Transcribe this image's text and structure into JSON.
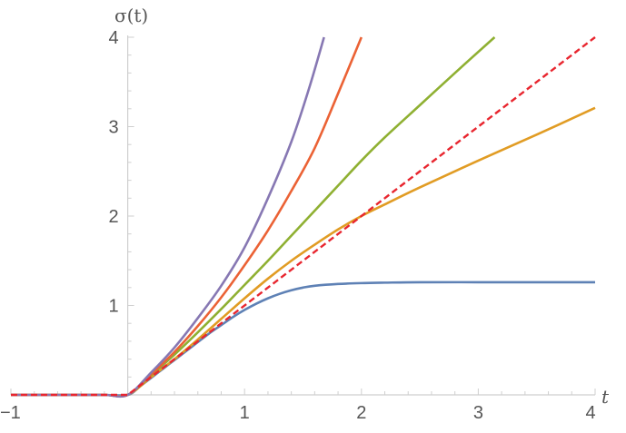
{
  "chart_data": {
    "type": "line",
    "xlabel": "t",
    "ylabel": "σ(t)",
    "xlim": [
      -1,
      4
    ],
    "ylim": [
      0,
      4
    ],
    "x_ticks": [
      -1,
      1,
      2,
      3,
      4
    ],
    "x_tick_labels": [
      "−1",
      "1",
      "2",
      "3",
      "4"
    ],
    "y_ticks": [
      1,
      2,
      3,
      4
    ],
    "y_tick_labels": [
      "1",
      "2",
      "3",
      "4"
    ],
    "grid": false,
    "legend": "none",
    "series": [
      {
        "color": "#5e81b5",
        "style": "solid",
        "x": [
          -1,
          -0.5,
          -0.2,
          0,
          0.1,
          0.2,
          0.3,
          0.4,
          0.5,
          0.6,
          0.7,
          0.8,
          0.9,
          1.0,
          1.1,
          1.2,
          1.3,
          1.4,
          1.5,
          1.6,
          1.8,
          2.0,
          2.2,
          2.5,
          3.0,
          3.5,
          4.0
        ],
        "y": [
          0,
          0,
          0,
          0,
          0.09,
          0.19,
          0.29,
          0.39,
          0.49,
          0.59,
          0.69,
          0.78,
          0.87,
          0.95,
          1.02,
          1.08,
          1.13,
          1.17,
          1.2,
          1.22,
          1.24,
          1.25,
          1.255,
          1.26,
          1.26,
          1.26,
          1.26
        ]
      },
      {
        "color": "#e19c24",
        "style": "solid",
        "x": [
          -1,
          -0.5,
          -0.2,
          0,
          0.2,
          0.4,
          0.6,
          0.8,
          1.0,
          1.2,
          1.4,
          1.6,
          1.8,
          2.0,
          2.2,
          2.5,
          3.0,
          3.5,
          4.0
        ],
        "y": [
          0,
          0,
          0,
          0,
          0.2,
          0.4,
          0.62,
          0.85,
          1.08,
          1.3,
          1.5,
          1.68,
          1.85,
          2.0,
          2.13,
          2.32,
          2.62,
          2.91,
          3.21
        ]
      },
      {
        "color": "#8fb032",
        "style": "solid",
        "x": [
          -1,
          -0.5,
          -0.2,
          0,
          0.2,
          0.4,
          0.6,
          0.8,
          1.0,
          1.2,
          1.4,
          1.6,
          1.8,
          2.0,
          2.2,
          2.5,
          2.8,
          3.14
        ],
        "y": [
          0,
          0,
          0,
          0,
          0.22,
          0.45,
          0.7,
          0.96,
          1.23,
          1.5,
          1.78,
          2.06,
          2.34,
          2.62,
          2.88,
          3.24,
          3.6,
          4.0
        ]
      },
      {
        "color": "#eb6235",
        "style": "solid",
        "x": [
          -1,
          -0.5,
          -0.2,
          0,
          0.2,
          0.4,
          0.6,
          0.8,
          1.0,
          1.2,
          1.4,
          1.6,
          1.8,
          2.0
        ],
        "y": [
          0,
          0,
          0,
          0,
          0.23,
          0.48,
          0.77,
          1.09,
          1.45,
          1.84,
          2.28,
          2.76,
          3.37,
          4.0
        ]
      },
      {
        "color": "#8778b3",
        "style": "solid",
        "x": [
          -1,
          -0.5,
          -0.2,
          0,
          0.2,
          0.4,
          0.6,
          0.8,
          1.0,
          1.2,
          1.4,
          1.55,
          1.68
        ],
        "y": [
          0,
          0,
          0,
          0,
          0.25,
          0.53,
          0.86,
          1.22,
          1.65,
          2.2,
          2.83,
          3.42,
          4.0
        ]
      },
      {
        "color": "#e8262f",
        "style": "dashed",
        "x": [
          -1,
          0,
          4
        ],
        "y": [
          0,
          0,
          4
        ]
      }
    ]
  }
}
